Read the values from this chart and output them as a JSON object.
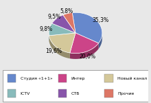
{
  "labels": [
    "Студия «1+1»",
    "Интер",
    "Новый канал",
    "ICTV",
    "СТБ",
    "Прочие"
  ],
  "values": [
    35.3,
    20.0,
    19.6,
    9.8,
    9.5,
    5.8
  ],
  "colors": [
    "#6688cc",
    "#cc4488",
    "#d4c89a",
    "#88bbbb",
    "#8855aa",
    "#dd7766"
  ],
  "edge_colors": [
    "#5577bb",
    "#bb3377",
    "#c4b88a",
    "#77aaaa",
    "#774499",
    "#cc6655"
  ],
  "pct_labels": [
    "35,3%",
    "20,0%",
    "19,6%",
    "9,8%",
    "9,5%",
    "5,8%"
  ],
  "legend_labels": [
    "Студия «1+1»",
    "Интер",
    "Новый канал",
    "ICTV",
    "СТБ",
    "Прочие"
  ],
  "startangle": 97,
  "figsize": [
    2.2,
    1.5
  ],
  "dpi": 100,
  "bg_color": "#e8e8e8"
}
